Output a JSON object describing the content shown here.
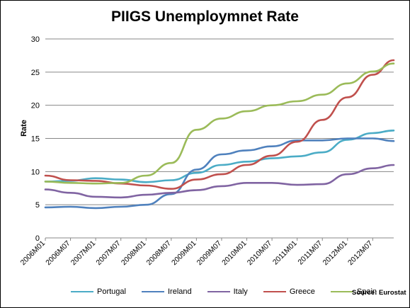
{
  "chart_data": {
    "type": "line",
    "title": "PIIGS Unemploymnet Rate",
    "ylabel": "Rate",
    "xlabel": "",
    "ylim": [
      0,
      30
    ],
    "yticks": [
      "0",
      "5",
      "10",
      "15",
      "20",
      "25",
      "30"
    ],
    "xticks": [
      "2006M01",
      "2006M07",
      "2007M01",
      "2007M07",
      "2008M01",
      "2008M07",
      "2009M01",
      "2009M07",
      "2010M01",
      "2010M07",
      "2011M01",
      "2011M07",
      "2012M01",
      "2012M07"
    ],
    "grid": true,
    "legend_position": "bottom",
    "source": "Source: Eurostat",
    "series": [
      {
        "name": "Portugal",
        "color": "#4bacc6",
        "x": [
          "2006M01",
          "2006M07",
          "2007M01",
          "2007M07",
          "2008M01",
          "2008M07",
          "2009M01",
          "2009M07",
          "2010M01",
          "2010M07",
          "2011M01",
          "2011M07",
          "2012M01",
          "2012M07",
          "2012M12"
        ],
        "values": [
          8.5,
          8.6,
          9.0,
          8.8,
          8.4,
          8.7,
          9.8,
          11.0,
          11.5,
          12.0,
          12.3,
          12.9,
          14.8,
          15.8,
          16.2
        ]
      },
      {
        "name": "Ireland",
        "color": "#4f81bd",
        "x": [
          "2006M01",
          "2006M07",
          "2007M01",
          "2007M07",
          "2008M01",
          "2008M07",
          "2009M01",
          "2009M07",
          "2010M01",
          "2010M07",
          "2011M01",
          "2011M07",
          "2012M01",
          "2012M07",
          "2012M12"
        ],
        "values": [
          4.6,
          4.7,
          4.5,
          4.7,
          5.0,
          6.6,
          10.3,
          12.6,
          13.2,
          13.8,
          14.7,
          14.7,
          15.0,
          15.0,
          14.6
        ]
      },
      {
        "name": "Italy",
        "color": "#8064a2",
        "x": [
          "2006M01",
          "2006M07",
          "2007M01",
          "2007M07",
          "2008M01",
          "2008M07",
          "2009M01",
          "2009M07",
          "2010M01",
          "2010M07",
          "2011M01",
          "2011M07",
          "2012M01",
          "2012M07",
          "2012M12"
        ],
        "values": [
          7.3,
          6.8,
          6.2,
          6.1,
          6.5,
          6.8,
          7.2,
          7.8,
          8.3,
          8.3,
          8.0,
          8.1,
          9.6,
          10.5,
          11.0
        ]
      },
      {
        "name": "Greece",
        "color": "#c0504d",
        "x": [
          "2006M01",
          "2006M07",
          "2007M01",
          "2007M07",
          "2008M01",
          "2008M07",
          "2009M01",
          "2009M07",
          "2010M01",
          "2010M07",
          "2011M01",
          "2011M07",
          "2012M01",
          "2012M07",
          "2012M12"
        ],
        "values": [
          9.4,
          8.7,
          8.6,
          8.2,
          7.9,
          7.4,
          8.8,
          9.6,
          11.0,
          12.4,
          14.5,
          17.8,
          21.2,
          24.6,
          26.8
        ]
      },
      {
        "name": "Spain",
        "color": "#9bbb59",
        "x": [
          "2006M01",
          "2006M07",
          "2007M01",
          "2007M07",
          "2008M01",
          "2008M07",
          "2009M01",
          "2009M07",
          "2010M01",
          "2010M07",
          "2011M01",
          "2011M07",
          "2012M01",
          "2012M07",
          "2012M12"
        ],
        "values": [
          8.5,
          8.3,
          8.2,
          8.3,
          9.4,
          11.3,
          16.3,
          18.0,
          19.1,
          20.0,
          20.6,
          21.6,
          23.3,
          25.1,
          26.3
        ]
      }
    ]
  }
}
